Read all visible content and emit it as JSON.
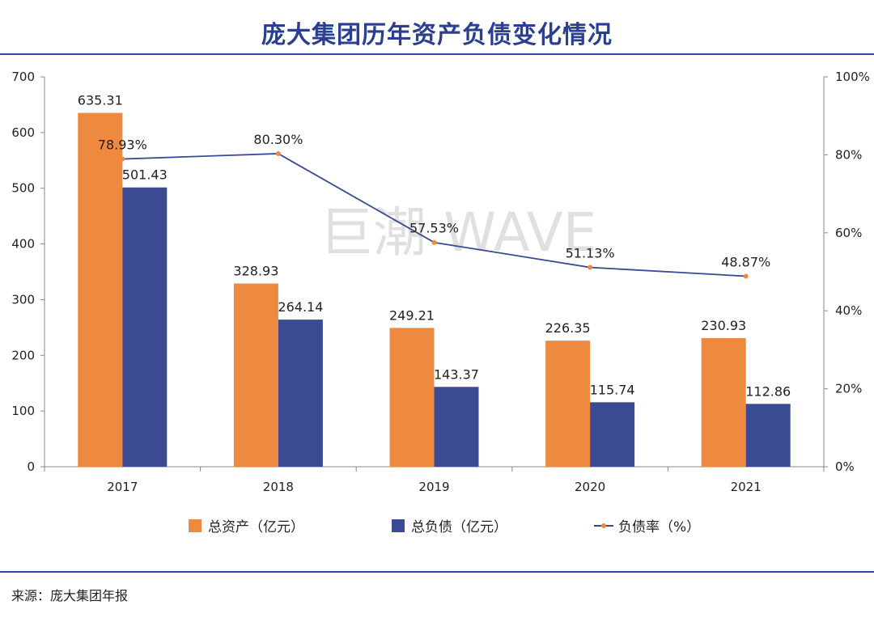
{
  "title": "庞大集团历年资产负债变化情况",
  "source": "来源：庞大集团年报",
  "watermark": "巨潮 WAVE",
  "colors": {
    "assets": "#ee8a3f",
    "liabilities": "#3a4b93",
    "ratio_line": "#3a4b93",
    "ratio_marker": "#ee8a3f"
  },
  "chart_data": {
    "type": "bar",
    "categories": [
      "2017",
      "2018",
      "2019",
      "2020",
      "2021"
    ],
    "series": [
      {
        "name": "总资产（亿元）",
        "kind": "bar",
        "axis": "left",
        "values": [
          635.31,
          328.93,
          249.21,
          226.35,
          230.93
        ],
        "labels": [
          "635.31",
          "328.93",
          "249.21",
          "226.35",
          "230.93"
        ]
      },
      {
        "name": "总负债（亿元）",
        "kind": "bar",
        "axis": "left",
        "values": [
          501.43,
          264.14,
          143.37,
          115.74,
          112.86
        ],
        "labels": [
          "501.43",
          "264.14",
          "143.37",
          "115.74",
          "112.86"
        ]
      },
      {
        "name": "负债率（%）",
        "kind": "line",
        "axis": "right",
        "values": [
          78.93,
          80.3,
          57.53,
          51.13,
          48.87
        ],
        "labels": [
          "78.93%",
          "80.30%",
          "57.53%",
          "51.13%",
          "48.87%"
        ]
      }
    ],
    "ylim": [
      0,
      700
    ],
    "yticks": [
      "0",
      "100",
      "200",
      "300",
      "400",
      "500",
      "600",
      "700"
    ],
    "y2lim": [
      0,
      100
    ],
    "y2ticks": [
      "0%",
      "20%",
      "40%",
      "60%",
      "80%",
      "100%"
    ],
    "legend_position": "bottom",
    "grid": false
  }
}
